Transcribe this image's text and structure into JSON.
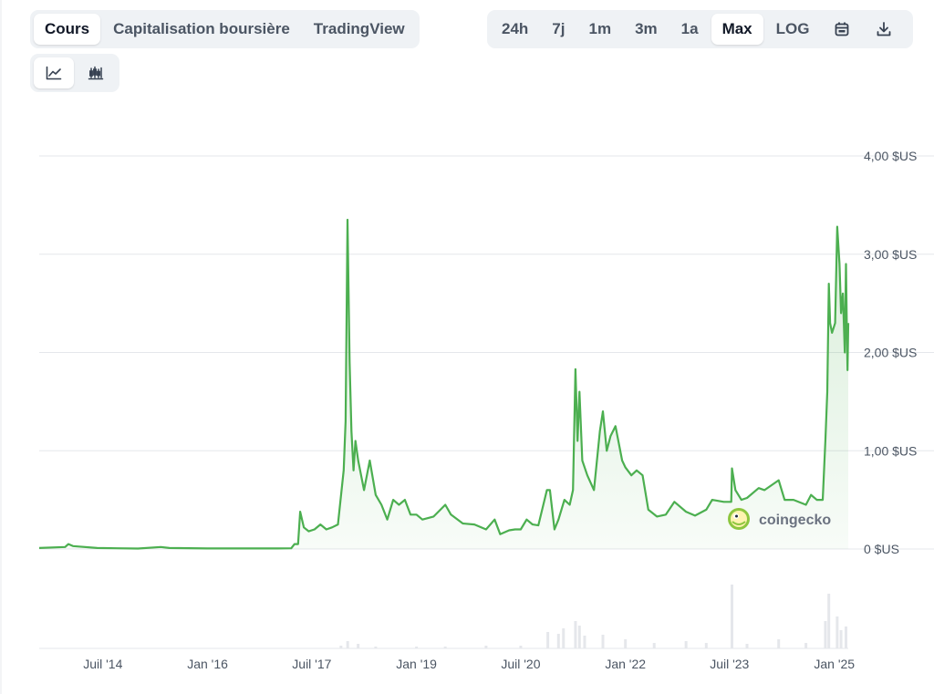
{
  "tabs": [
    {
      "label": "Cours",
      "active": true
    },
    {
      "label": "Capitalisation boursière",
      "active": false
    },
    {
      "label": "TradingView",
      "active": false
    }
  ],
  "ranges": [
    {
      "label": "24h",
      "active": false
    },
    {
      "label": "7j",
      "active": false
    },
    {
      "label": "1m",
      "active": false
    },
    {
      "label": "3m",
      "active": false
    },
    {
      "label": "1a",
      "active": false
    },
    {
      "label": "Max",
      "active": true
    },
    {
      "label": "LOG",
      "active": false
    }
  ],
  "toolbar_icons": [
    "calendar-icon",
    "download-icon"
  ],
  "view_icons": [
    {
      "icon": "line-chart-icon",
      "active": true
    },
    {
      "icon": "candlestick-icon",
      "active": false
    }
  ],
  "watermark": "coingecko",
  "colors": {
    "line": "#4caf50",
    "fill": "#e8f5e9",
    "grid": "#e5e7eb",
    "volume": "#e5e7eb",
    "text": "#4b5563"
  },
  "chart_data": {
    "type": "area",
    "ylabel": "",
    "xlabel": "",
    "ylim": [
      0,
      4
    ],
    "yticks": [
      "4,00 $US",
      "3,00 $US",
      "2,00 $US",
      "1,00 $US",
      "0 $US"
    ],
    "ytick_values": [
      4,
      3,
      2,
      1,
      0
    ],
    "xticks": [
      "Juil '14",
      "Jan '16",
      "Juil '17",
      "Jan '19",
      "Juil '20",
      "Jan '22",
      "Juil '23",
      "Jan '25"
    ],
    "xtick_dates": [
      "2014-07-01",
      "2016-01-01",
      "2017-07-01",
      "2019-01-01",
      "2020-07-01",
      "2022-01-01",
      "2023-07-01",
      "2025-01-01"
    ],
    "x_range": [
      "2013-08-01",
      "2025-03-15"
    ],
    "grid": true,
    "series": [
      {
        "values": [
          [
            "2013-08-01",
            0.01
          ],
          [
            "2013-12-15",
            0.02
          ],
          [
            "2014-01-01",
            0.05
          ],
          [
            "2014-01-25",
            0.03
          ],
          [
            "2014-06-01",
            0.01
          ],
          [
            "2015-01-01",
            0.005
          ],
          [
            "2015-05-01",
            0.02
          ],
          [
            "2015-06-15",
            0.01
          ],
          [
            "2016-01-01",
            0.006
          ],
          [
            "2016-06-01",
            0.006
          ],
          [
            "2017-01-01",
            0.006
          ],
          [
            "2017-03-15",
            0.007
          ],
          [
            "2017-04-01",
            0.05
          ],
          [
            "2017-04-20",
            0.05
          ],
          [
            "2017-05-01",
            0.38
          ],
          [
            "2017-05-20",
            0.22
          ],
          [
            "2017-06-15",
            0.18
          ],
          [
            "2017-07-15",
            0.2
          ],
          [
            "2017-08-15",
            0.25
          ],
          [
            "2017-09-15",
            0.2
          ],
          [
            "2017-10-15",
            0.22
          ],
          [
            "2017-11-15",
            0.25
          ],
          [
            "2017-12-15",
            0.8
          ],
          [
            "2017-12-25",
            1.3
          ],
          [
            "2018-01-04",
            3.35
          ],
          [
            "2018-01-15",
            1.9
          ],
          [
            "2018-01-25",
            1.2
          ],
          [
            "2018-02-05",
            0.8
          ],
          [
            "2018-02-15",
            1.1
          ],
          [
            "2018-03-01",
            0.9
          ],
          [
            "2018-04-01",
            0.6
          ],
          [
            "2018-05-01",
            0.9
          ],
          [
            "2018-06-01",
            0.55
          ],
          [
            "2018-07-01",
            0.45
          ],
          [
            "2018-08-01",
            0.3
          ],
          [
            "2018-09-01",
            0.5
          ],
          [
            "2018-10-01",
            0.45
          ],
          [
            "2018-11-01",
            0.5
          ],
          [
            "2018-12-01",
            0.35
          ],
          [
            "2019-01-01",
            0.35
          ],
          [
            "2019-02-01",
            0.3
          ],
          [
            "2019-04-01",
            0.33
          ],
          [
            "2019-06-01",
            0.45
          ],
          [
            "2019-07-01",
            0.35
          ],
          [
            "2019-09-01",
            0.26
          ],
          [
            "2019-11-01",
            0.25
          ],
          [
            "2020-01-01",
            0.2
          ],
          [
            "2020-02-15",
            0.3
          ],
          [
            "2020-03-15",
            0.15
          ],
          [
            "2020-05-01",
            0.19
          ],
          [
            "2020-06-01",
            0.2
          ],
          [
            "2020-07-01",
            0.2
          ],
          [
            "2020-08-01",
            0.3
          ],
          [
            "2020-09-01",
            0.25
          ],
          [
            "2020-10-01",
            0.24
          ],
          [
            "2020-11-15",
            0.6
          ],
          [
            "2020-12-01",
            0.6
          ],
          [
            "2020-12-25",
            0.2
          ],
          [
            "2021-01-15",
            0.3
          ],
          [
            "2021-02-15",
            0.5
          ],
          [
            "2021-03-15",
            0.45
          ],
          [
            "2021-04-01",
            0.6
          ],
          [
            "2021-04-14",
            1.83
          ],
          [
            "2021-04-25",
            1.1
          ],
          [
            "2021-05-05",
            1.6
          ],
          [
            "2021-05-20",
            0.9
          ],
          [
            "2021-06-15",
            0.75
          ],
          [
            "2021-07-20",
            0.6
          ],
          [
            "2021-08-20",
            1.2
          ],
          [
            "2021-09-05",
            1.4
          ],
          [
            "2021-09-25",
            1.0
          ],
          [
            "2021-10-15",
            1.15
          ],
          [
            "2021-11-10",
            1.25
          ],
          [
            "2021-12-15",
            0.9
          ],
          [
            "2022-01-01",
            0.83
          ],
          [
            "2022-02-01",
            0.75
          ],
          [
            "2022-03-01",
            0.8
          ],
          [
            "2022-04-01",
            0.75
          ],
          [
            "2022-05-01",
            0.4
          ],
          [
            "2022-06-15",
            0.33
          ],
          [
            "2022-08-01",
            0.35
          ],
          [
            "2022-09-15",
            0.48
          ],
          [
            "2022-11-15",
            0.38
          ],
          [
            "2023-01-01",
            0.34
          ],
          [
            "2023-03-01",
            0.4
          ],
          [
            "2023-04-01",
            0.5
          ],
          [
            "2023-06-01",
            0.48
          ],
          [
            "2023-07-10",
            0.48
          ],
          [
            "2023-07-14",
            0.82
          ],
          [
            "2023-08-01",
            0.6
          ],
          [
            "2023-09-01",
            0.5
          ],
          [
            "2023-10-01",
            0.52
          ],
          [
            "2023-12-01",
            0.62
          ],
          [
            "2024-01-01",
            0.6
          ],
          [
            "2024-03-15",
            0.7
          ],
          [
            "2024-04-15",
            0.5
          ],
          [
            "2024-06-01",
            0.5
          ],
          [
            "2024-08-05",
            0.45
          ],
          [
            "2024-09-01",
            0.55
          ],
          [
            "2024-10-01",
            0.5
          ],
          [
            "2024-11-01",
            0.5
          ],
          [
            "2024-11-15",
            1.1
          ],
          [
            "2024-11-25",
            1.6
          ],
          [
            "2024-12-03",
            2.7
          ],
          [
            "2024-12-10",
            2.3
          ],
          [
            "2024-12-20",
            2.2
          ],
          [
            "2025-01-05",
            2.3
          ],
          [
            "2025-01-16",
            3.28
          ],
          [
            "2025-01-28",
            2.9
          ],
          [
            "2025-02-05",
            2.4
          ],
          [
            "2025-02-15",
            2.6
          ],
          [
            "2025-02-25",
            2.0
          ],
          [
            "2025-03-03",
            2.9
          ],
          [
            "2025-03-08",
            2.2
          ],
          [
            "2025-03-11",
            1.82
          ],
          [
            "2025-03-15",
            2.3
          ]
        ]
      }
    ],
    "volume": {
      "ylim": [
        0,
        70
      ],
      "values": [
        [
          "2017-12-01",
          3
        ],
        [
          "2018-01-05",
          8
        ],
        [
          "2018-03-01",
          5
        ],
        [
          "2018-06-01",
          2
        ],
        [
          "2019-01-01",
          2
        ],
        [
          "2019-06-01",
          2
        ],
        [
          "2020-01-01",
          3
        ],
        [
          "2020-07-01",
          3
        ],
        [
          "2020-11-20",
          18
        ],
        [
          "2021-01-15",
          16
        ],
        [
          "2021-02-10",
          22
        ],
        [
          "2021-04-14",
          30
        ],
        [
          "2021-05-05",
          25
        ],
        [
          "2021-06-01",
          14
        ],
        [
          "2021-09-05",
          15
        ],
        [
          "2022-01-01",
          10
        ],
        [
          "2022-06-01",
          6
        ],
        [
          "2022-11-15",
          8
        ],
        [
          "2023-03-01",
          6
        ],
        [
          "2023-07-14",
          70
        ],
        [
          "2023-10-01",
          5
        ],
        [
          "2024-03-15",
          10
        ],
        [
          "2024-08-05",
          6
        ],
        [
          "2024-11-15",
          30
        ],
        [
          "2024-12-03",
          60
        ],
        [
          "2025-01-16",
          35
        ],
        [
          "2025-02-05",
          20
        ],
        [
          "2025-03-03",
          24
        ]
      ]
    }
  }
}
